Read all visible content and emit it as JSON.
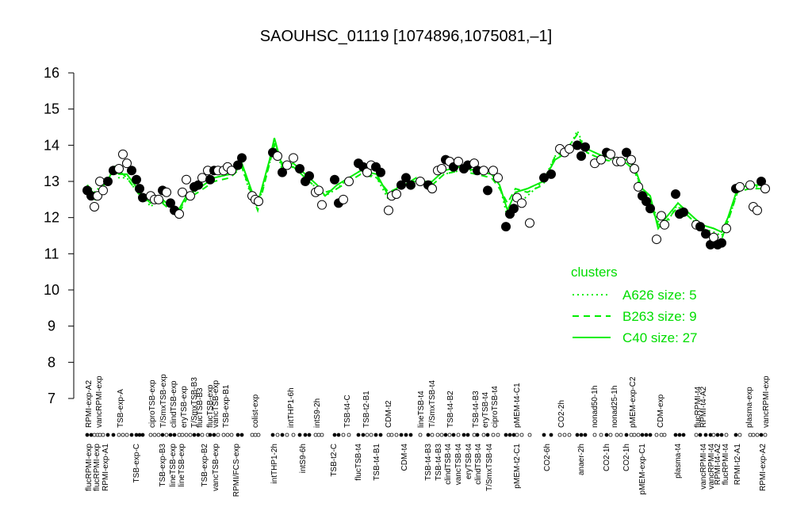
{
  "chart_data": {
    "type": "scatter-lines",
    "title": "SAOUHSC_01119 [1074896,1075081,–1]",
    "ylim": [
      7,
      16
    ],
    "yticks": [
      7,
      8,
      9,
      10,
      11,
      12,
      13,
      14,
      15,
      16
    ],
    "xlim": [
      100,
      980
    ],
    "point_color": "#000000",
    "points": {
      "x": [
        110,
        115,
        119,
        123,
        126,
        130,
        136,
        143,
        150,
        155,
        160,
        166,
        172,
        176,
        180,
        190,
        195,
        200,
        205,
        210,
        215,
        220,
        226,
        230,
        235,
        240,
        245,
        250,
        255,
        262,
        265,
        270,
        275,
        282,
        287,
        292,
        300,
        305,
        318,
        322,
        326,
        344,
        350,
        356,
        362,
        370,
        378,
        385,
        390,
        398,
        402,
        406,
        422,
        427,
        433,
        440,
        452,
        458,
        463,
        468,
        474,
        480,
        490,
        494,
        500,
        506,
        512,
        518,
        530,
        540,
        545,
        552,
        557,
        562,
        567,
        572,
        578,
        585,
        590,
        598,
        602,
        610,
        615,
        622,
        628,
        638,
        643,
        648,
        652,
        658,
        668,
        686,
        695,
        706,
        712,
        718,
        728,
        733,
        738,
        750,
        758,
        765,
        770,
        778,
        783,
        790,
        796,
        800,
        805,
        810,
        815,
        820,
        828,
        834,
        838,
        852,
        857,
        862,
        878,
        883,
        890,
        896,
        900,
        905,
        910,
        916,
        928,
        933,
        946,
        950,
        955,
        960,
        965
      ],
      "y": [
        12.75,
        12.6,
        12.3,
        12.6,
        13.0,
        12.75,
        13.0,
        13.3,
        13.35,
        13.75,
        13.5,
        13.3,
        13.05,
        12.8,
        12.55,
        12.6,
        12.5,
        12.5,
        12.75,
        12.7,
        12.4,
        12.2,
        12.1,
        12.7,
        13.05,
        12.6,
        12.85,
        12.9,
        13.1,
        13.3,
        13.05,
        13.3,
        13.3,
        13.3,
        13.4,
        13.3,
        13.45,
        13.65,
        12.6,
        12.5,
        12.45,
        13.8,
        13.7,
        13.25,
        13.45,
        13.65,
        13.35,
        13.0,
        13.15,
        12.7,
        12.75,
        12.35,
        13.05,
        12.4,
        12.5,
        13.0,
        13.5,
        13.4,
        13.25,
        13.45,
        13.4,
        13.25,
        12.2,
        12.6,
        12.65,
        12.9,
        13.1,
        12.9,
        13.0,
        12.9,
        12.8,
        13.3,
        13.35,
        13.6,
        13.55,
        13.4,
        13.55,
        13.35,
        13.45,
        13.5,
        13.3,
        13.3,
        12.75,
        13.3,
        13.1,
        11.75,
        12.1,
        12.25,
        12.55,
        12.4,
        11.85,
        13.1,
        13.2,
        13.9,
        13.8,
        13.9,
        14.0,
        13.7,
        13.95,
        13.5,
        13.6,
        13.8,
        13.75,
        13.55,
        13.55,
        13.8,
        13.6,
        13.35,
        12.85,
        12.6,
        12.45,
        12.25,
        11.4,
        12.05,
        11.8,
        12.65,
        12.1,
        12.15,
        11.8,
        11.75,
        11.55,
        11.25,
        11.45,
        11.25,
        11.3,
        11.7,
        12.8,
        12.85,
        12.9,
        12.3,
        12.2,
        13.0,
        12.8
      ],
      "filled": [
        true,
        true,
        false,
        false,
        false,
        false,
        true,
        true,
        false,
        false,
        false,
        true,
        true,
        true,
        true,
        false,
        false,
        false,
        true,
        false,
        true,
        true,
        false,
        false,
        false,
        false,
        true,
        true,
        false,
        false,
        true,
        true,
        false,
        false,
        false,
        false,
        true,
        true,
        false,
        false,
        false,
        true,
        false,
        true,
        false,
        false,
        true,
        true,
        true,
        false,
        false,
        false,
        true,
        true,
        false,
        false,
        true,
        true,
        false,
        false,
        true,
        true,
        false,
        false,
        false,
        true,
        true,
        true,
        false,
        true,
        false,
        false,
        false,
        true,
        false,
        true,
        false,
        true,
        true,
        false,
        true,
        false,
        true,
        false,
        false,
        true,
        true,
        true,
        false,
        false,
        false,
        true,
        true,
        false,
        false,
        false,
        true,
        true,
        true,
        false,
        false,
        true,
        false,
        false,
        false,
        true,
        false,
        false,
        false,
        true,
        true,
        true,
        false,
        false,
        false,
        true,
        true,
        true,
        false,
        true,
        true,
        true,
        false,
        true,
        true,
        false,
        true,
        false,
        false,
        false,
        false,
        true,
        false
      ]
    },
    "line_color": "#00ee00",
    "legend_title": "clusters",
    "x": [
      110,
      120,
      135,
      145,
      150,
      160,
      170,
      180,
      190,
      200,
      215,
      225,
      235,
      250,
      270,
      290,
      305,
      318,
      325,
      340,
      346,
      356,
      370,
      385,
      400,
      410,
      425,
      440,
      455,
      475,
      490,
      510,
      525,
      545,
      560,
      580,
      600,
      620,
      630,
      640,
      650,
      665,
      685,
      700,
      715,
      728,
      740,
      760,
      790,
      800,
      810,
      820,
      830,
      840,
      855,
      870,
      885,
      900,
      910,
      918,
      930,
      945,
      965
    ],
    "series": [
      {
        "name": "A626 size: 5",
        "style": "dotted",
        "values": [
          12.9,
          12.7,
          13.1,
          13.3,
          13.1,
          13.1,
          12.8,
          12.6,
          12.3,
          12.5,
          12.3,
          12.2,
          12.5,
          12.8,
          13.1,
          13.2,
          13.4,
          12.5,
          12.3,
          13.5,
          14.1,
          13.3,
          13.4,
          13.1,
          12.8,
          12.6,
          12.8,
          13.1,
          13.3,
          13.1,
          12.5,
          12.9,
          13.0,
          12.9,
          13.2,
          13.3,
          13.3,
          13.2,
          12.9,
          12.0,
          12.3,
          12.6,
          13.0,
          13.7,
          13.8,
          14.4,
          13.8,
          13.6,
          13.6,
          13.3,
          12.8,
          12.5,
          11.9,
          11.8,
          12.4,
          12.0,
          11.7,
          11.6,
          11.5,
          11.9,
          12.7,
          12.9,
          12.8
        ]
      },
      {
        "name": "B263 size: 9",
        "style": "dashed",
        "values": [
          12.8,
          12.5,
          12.9,
          13.3,
          13.3,
          13.1,
          12.8,
          12.5,
          12.5,
          12.5,
          12.2,
          12.1,
          12.5,
          12.7,
          13.0,
          13.1,
          13.4,
          12.6,
          12.2,
          13.5,
          14.0,
          13.5,
          13.4,
          13.1,
          12.8,
          12.7,
          12.8,
          13.0,
          13.2,
          13.1,
          12.7,
          12.9,
          13.1,
          12.9,
          13.2,
          13.3,
          13.2,
          13.1,
          12.8,
          12.4,
          12.8,
          12.7,
          12.9,
          13.7,
          13.9,
          14.3,
          13.8,
          13.6,
          13.5,
          13.3,
          12.7,
          12.4,
          11.8,
          11.9,
          12.3,
          12.0,
          11.7,
          11.5,
          11.4,
          11.9,
          12.7,
          12.8,
          12.8
        ]
      },
      {
        "name": "C40 size: 27",
        "style": "solid",
        "values": [
          12.9,
          12.6,
          13.0,
          13.4,
          13.2,
          13.2,
          12.9,
          12.6,
          12.4,
          12.6,
          12.3,
          12.2,
          12.6,
          12.8,
          13.1,
          13.2,
          13.5,
          12.7,
          12.4,
          13.6,
          14.2,
          13.4,
          13.5,
          13.2,
          12.9,
          12.6,
          12.9,
          13.1,
          13.3,
          13.2,
          12.6,
          13.0,
          13.0,
          13.0,
          13.3,
          13.4,
          13.3,
          13.2,
          12.9,
          12.2,
          12.7,
          12.8,
          13.0,
          13.6,
          13.8,
          14.1,
          13.9,
          13.7,
          13.6,
          13.4,
          12.8,
          12.6,
          11.7,
          12.0,
          12.4,
          12.1,
          11.8,
          11.7,
          11.6,
          12.0,
          12.8,
          12.9,
          12.9
        ]
      }
    ],
    "top_labels": {
      "x": [
        112,
        125,
        152,
        192,
        206,
        219,
        232,
        245,
        252,
        265,
        272,
        285,
        322,
        367,
        400,
        438,
        462,
        490,
        531,
        545,
        568,
        600,
        612,
        624,
        652,
        708,
        750,
        775,
        798,
        833,
        880,
        887,
        945,
        966
      ],
      "labels": [
        "RPMI-exp-A2",
        "vancRPMI-exp",
        "TSB-exp-A",
        "ciproTSB-exp",
        "T/SmxTSB-exp",
        "clindTSB-exp",
        "eryTSB-exp",
        "T/SmxTSB-B3",
        "flucTSB-B3",
        "flucTSB-exp",
        "vancTSB-exp",
        "TSB-exp-B1",
        "colist-exp",
        "intTHP1-6h",
        "intS9-2h",
        "TSB-t4-C",
        "TSB-t2-B1",
        "CDM-t2",
        "lineTSB-t4",
        "T/SmxTSB-t4",
        "TSB-t4-B2",
        "TSB-t4-B3",
        "eryTSB-t4",
        "ciproTSB-t4",
        "pMEM-t4-C1",
        "CO2-2h",
        "nonad50-1h",
        "nonad25-1h",
        "pMEM-exp-C2",
        "CDM-exp",
        "flucRPMI-t4",
        "RPMI-t4-A2",
        "plasma-exp",
        "vancRPMI-exp"
      ]
    },
    "bottom_labels": {
      "x": [
        112,
        122,
        133,
        172,
        205,
        218,
        229,
        258,
        272,
        298,
        346,
        382,
        421,
        452,
        475,
        510,
        540,
        553,
        565,
        578,
        591,
        603,
        617,
        652,
        690,
        733,
        765,
        790,
        810,
        855,
        887,
        897,
        905,
        915,
        930,
        962
      ],
      "labels": [
        "flucRPMI-exp",
        "flucRPMI-exp",
        "RPMI-exp-A1",
        "TSB-exp-C",
        "TSB-exp-B3",
        "lineTSB-exp",
        "lineTSB-exp",
        "TSB-exp-B2",
        "vancTSB-exp",
        "RPMI/FCS-exp",
        "intTHP1-2h",
        "intS9-6h",
        "TSB-t2-C",
        "flucTSB-t4",
        "TSB-t4-B1",
        "CDM-t4",
        "TSB-t4-B3",
        "TSB-t4-B3",
        "clindTSB-t4",
        "vancTSB-t4",
        "eryTSB-t4",
        "clindTSB-t4",
        "T/SmxTSB-t4",
        "pMEM-t2-C1",
        "CO2-6h",
        "anaer-2h",
        "CO2-1h",
        "CO2-1h",
        "pMEM-exp-C1",
        "plasma-t4",
        "vancRPMI-t4",
        "vancRPMI-t4",
        "RPMI-t4-A2",
        "flucRPMI-t4",
        "RPMI-t2-A1",
        "RPMI-exp-A2"
      ]
    }
  }
}
